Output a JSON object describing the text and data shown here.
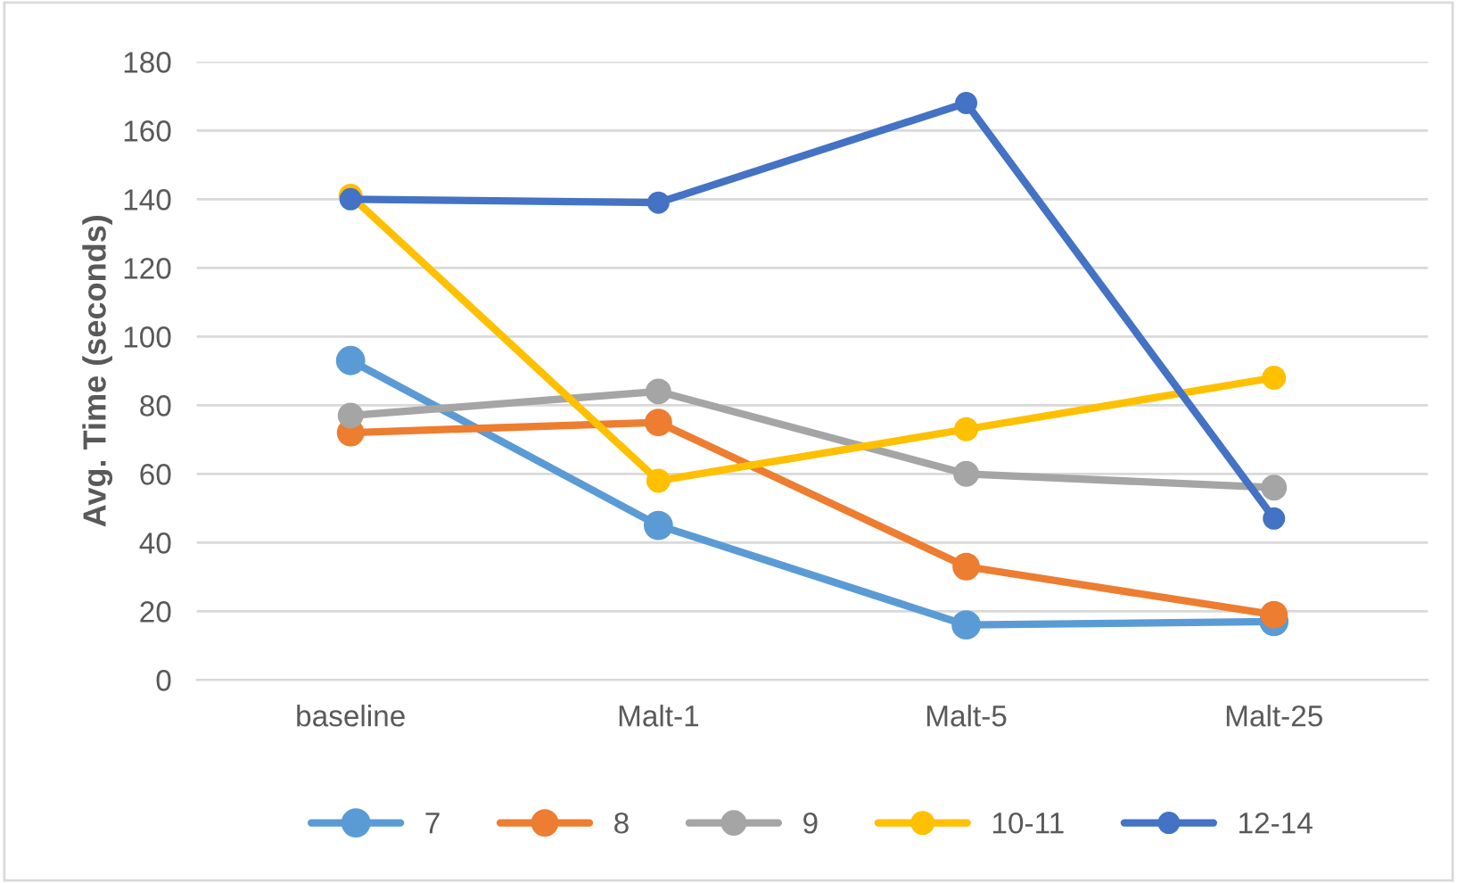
{
  "chart_data": {
    "type": "line",
    "ylabel": "Avg. Time (seconds)",
    "categories": [
      "baseline",
      "Malt-1",
      "Malt-5",
      "Malt-25"
    ],
    "series": [
      {
        "name": "7",
        "color": "#5b9bd5",
        "values": [
          93,
          45,
          16,
          17
        ]
      },
      {
        "name": "8",
        "color": "#ed7d31",
        "values": [
          72,
          75,
          33,
          19
        ]
      },
      {
        "name": "9",
        "color": "#a5a5a5",
        "values": [
          77,
          84,
          60,
          56
        ]
      },
      {
        "name": "10-11",
        "color": "#ffc000",
        "values": [
          141,
          58,
          73,
          88
        ]
      },
      {
        "name": "12-14",
        "color": "#4472c4",
        "values": [
          140,
          139,
          168,
          47
        ]
      }
    ],
    "ylim": [
      0,
      180
    ],
    "yticks": [
      0,
      20,
      40,
      60,
      80,
      100,
      120,
      140,
      160,
      180
    ],
    "grid": "y",
    "legend": "bottom",
    "marker": "circle",
    "line_style": "solid"
  }
}
